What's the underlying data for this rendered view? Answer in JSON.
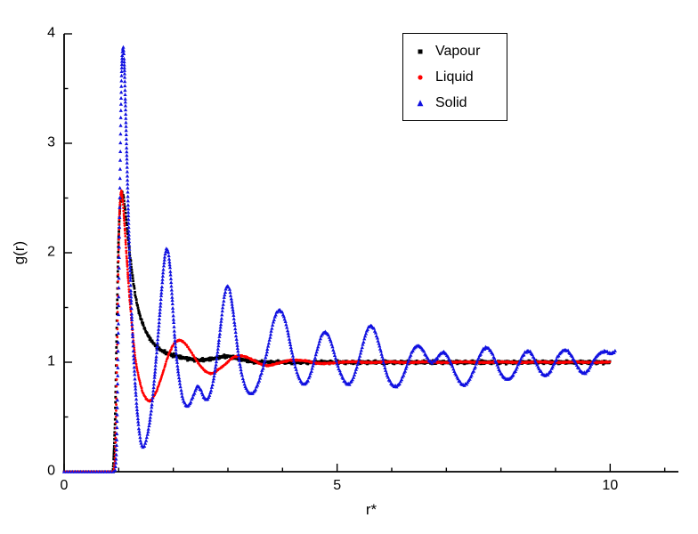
{
  "chart_data": {
    "type": "scatter",
    "title": "",
    "xlabel": "r*",
    "ylabel": "g(r)",
    "xlim": [
      0,
      11.25
    ],
    "ylim": [
      0,
      4
    ],
    "x_major_ticks": [
      0,
      5,
      10
    ],
    "x_minor_step": 1,
    "y_major_ticks": [
      0,
      1,
      2,
      3,
      4
    ],
    "y_minor_step": 0.5,
    "grid": false,
    "legend_position": "top-center-right",
    "axis_color": "#000000",
    "series": [
      {
        "name": "Vapour",
        "marker": "square",
        "color": "#000000",
        "noise": 0.018,
        "points": [
          [
            0.0,
            0
          ],
          [
            0.5,
            0
          ],
          [
            0.88,
            0
          ],
          [
            0.9,
            0.05
          ],
          [
            0.93,
            0.4
          ],
          [
            0.95,
            0.9
          ],
          [
            0.97,
            1.5
          ],
          [
            1.0,
            2.15
          ],
          [
            1.03,
            2.45
          ],
          [
            1.06,
            2.55
          ],
          [
            1.09,
            2.5
          ],
          [
            1.12,
            2.38
          ],
          [
            1.16,
            2.2
          ],
          [
            1.2,
            2.0
          ],
          [
            1.25,
            1.8
          ],
          [
            1.3,
            1.63
          ],
          [
            1.36,
            1.48
          ],
          [
            1.42,
            1.38
          ],
          [
            1.5,
            1.28
          ],
          [
            1.58,
            1.21
          ],
          [
            1.66,
            1.16
          ],
          [
            1.75,
            1.12
          ],
          [
            1.85,
            1.09
          ],
          [
            1.95,
            1.07
          ],
          [
            2.1,
            1.05
          ],
          [
            2.3,
            1.03
          ],
          [
            2.5,
            1.02
          ],
          [
            2.7,
            1.03
          ],
          [
            2.9,
            1.05
          ],
          [
            3.05,
            1.05
          ],
          [
            3.2,
            1.03
          ],
          [
            3.4,
            1.01
          ],
          [
            3.6,
            1.0
          ],
          [
            4.0,
            1.0
          ],
          [
            4.5,
            1.0
          ],
          [
            5.0,
            1.0
          ],
          [
            5.5,
            1.0
          ],
          [
            6.0,
            1.0
          ],
          [
            6.5,
            1.0
          ],
          [
            7.0,
            1.0
          ],
          [
            7.5,
            1.0
          ],
          [
            8.0,
            1.0
          ],
          [
            8.5,
            1.0
          ],
          [
            9.0,
            1.0
          ],
          [
            9.5,
            1.0
          ],
          [
            10.0,
            1.0
          ]
        ]
      },
      {
        "name": "Liquid",
        "marker": "circle",
        "color": "#ff0000",
        "noise": 0.008,
        "points": [
          [
            0.0,
            0
          ],
          [
            0.5,
            0
          ],
          [
            0.9,
            0
          ],
          [
            0.93,
            0.1
          ],
          [
            0.95,
            0.5
          ],
          [
            0.97,
            1.1
          ],
          [
            0.99,
            1.8
          ],
          [
            1.01,
            2.3
          ],
          [
            1.04,
            2.55
          ],
          [
            1.07,
            2.5
          ],
          [
            1.1,
            2.3
          ],
          [
            1.14,
            2.0
          ],
          [
            1.19,
            1.65
          ],
          [
            1.24,
            1.35
          ],
          [
            1.3,
            1.05
          ],
          [
            1.36,
            0.88
          ],
          [
            1.43,
            0.74
          ],
          [
            1.5,
            0.67
          ],
          [
            1.58,
            0.65
          ],
          [
            1.66,
            0.7
          ],
          [
            1.74,
            0.8
          ],
          [
            1.82,
            0.92
          ],
          [
            1.9,
            1.05
          ],
          [
            1.98,
            1.14
          ],
          [
            2.06,
            1.19
          ],
          [
            2.14,
            1.2
          ],
          [
            2.22,
            1.17
          ],
          [
            2.32,
            1.1
          ],
          [
            2.42,
            1.02
          ],
          [
            2.52,
            0.95
          ],
          [
            2.62,
            0.91
          ],
          [
            2.72,
            0.9
          ],
          [
            2.82,
            0.93
          ],
          [
            2.95,
            0.98
          ],
          [
            3.08,
            1.04
          ],
          [
            3.2,
            1.06
          ],
          [
            3.32,
            1.05
          ],
          [
            3.45,
            1.02
          ],
          [
            3.58,
            0.99
          ],
          [
            3.72,
            0.97
          ],
          [
            3.85,
            0.98
          ],
          [
            4.0,
            1.0
          ],
          [
            4.15,
            1.02
          ],
          [
            4.3,
            1.02
          ],
          [
            4.45,
            1.01
          ],
          [
            4.6,
            0.99
          ],
          [
            4.8,
            0.99
          ],
          [
            5.0,
            1.0
          ],
          [
            5.5,
            1.0
          ],
          [
            6.0,
            1.0
          ],
          [
            6.5,
            1.0
          ],
          [
            7.0,
            1.0
          ],
          [
            7.5,
            1.0
          ],
          [
            8.0,
            1.0
          ],
          [
            8.5,
            1.0
          ],
          [
            9.0,
            1.0
          ],
          [
            9.5,
            1.0
          ],
          [
            10.0,
            1.0
          ]
        ]
      },
      {
        "name": "Solid",
        "marker": "triangle",
        "color": "#1010e0",
        "noise": 0.008,
        "points": [
          [
            0.0,
            0
          ],
          [
            0.5,
            0
          ],
          [
            0.93,
            0
          ],
          [
            0.96,
            0.2
          ],
          [
            0.98,
            0.8
          ],
          [
            1.0,
            1.6
          ],
          [
            1.02,
            2.5
          ],
          [
            1.04,
            3.3
          ],
          [
            1.06,
            3.75
          ],
          [
            1.08,
            3.88
          ],
          [
            1.1,
            3.75
          ],
          [
            1.12,
            3.4
          ],
          [
            1.15,
            2.85
          ],
          [
            1.18,
            2.3
          ],
          [
            1.21,
            1.8
          ],
          [
            1.25,
            1.3
          ],
          [
            1.29,
            0.9
          ],
          [
            1.33,
            0.6
          ],
          [
            1.38,
            0.35
          ],
          [
            1.43,
            0.23
          ],
          [
            1.48,
            0.25
          ],
          [
            1.53,
            0.35
          ],
          [
            1.58,
            0.5
          ],
          [
            1.63,
            0.72
          ],
          [
            1.68,
            1.0
          ],
          [
            1.73,
            1.3
          ],
          [
            1.78,
            1.62
          ],
          [
            1.83,
            1.9
          ],
          [
            1.87,
            2.03
          ],
          [
            1.91,
            2.0
          ],
          [
            1.95,
            1.8
          ],
          [
            1.99,
            1.5
          ],
          [
            2.03,
            1.2
          ],
          [
            2.08,
            0.95
          ],
          [
            2.13,
            0.78
          ],
          [
            2.18,
            0.66
          ],
          [
            2.24,
            0.6
          ],
          [
            2.3,
            0.62
          ],
          [
            2.37,
            0.7
          ],
          [
            2.44,
            0.78
          ],
          [
            2.5,
            0.75
          ],
          [
            2.56,
            0.68
          ],
          [
            2.62,
            0.66
          ],
          [
            2.68,
            0.72
          ],
          [
            2.74,
            0.85
          ],
          [
            2.8,
            1.05
          ],
          [
            2.86,
            1.3
          ],
          [
            2.92,
            1.55
          ],
          [
            2.97,
            1.68
          ],
          [
            3.02,
            1.68
          ],
          [
            3.07,
            1.55
          ],
          [
            3.13,
            1.32
          ],
          [
            3.19,
            1.08
          ],
          [
            3.25,
            0.9
          ],
          [
            3.32,
            0.78
          ],
          [
            3.39,
            0.72
          ],
          [
            3.46,
            0.72
          ],
          [
            3.53,
            0.78
          ],
          [
            3.6,
            0.88
          ],
          [
            3.68,
            1.02
          ],
          [
            3.76,
            1.2
          ],
          [
            3.84,
            1.38
          ],
          [
            3.92,
            1.47
          ],
          [
            4.0,
            1.45
          ],
          [
            4.08,
            1.32
          ],
          [
            4.16,
            1.12
          ],
          [
            4.24,
            0.95
          ],
          [
            4.32,
            0.84
          ],
          [
            4.4,
            0.8
          ],
          [
            4.48,
            0.85
          ],
          [
            4.56,
            0.97
          ],
          [
            4.64,
            1.12
          ],
          [
            4.72,
            1.25
          ],
          [
            4.8,
            1.27
          ],
          [
            4.88,
            1.2
          ],
          [
            4.96,
            1.06
          ],
          [
            5.04,
            0.93
          ],
          [
            5.12,
            0.84
          ],
          [
            5.2,
            0.8
          ],
          [
            5.28,
            0.84
          ],
          [
            5.36,
            0.95
          ],
          [
            5.44,
            1.1
          ],
          [
            5.52,
            1.25
          ],
          [
            5.6,
            1.33
          ],
          [
            5.68,
            1.3
          ],
          [
            5.76,
            1.18
          ],
          [
            5.84,
            1.02
          ],
          [
            5.92,
            0.88
          ],
          [
            6.0,
            0.8
          ],
          [
            6.08,
            0.78
          ],
          [
            6.16,
            0.82
          ],
          [
            6.24,
            0.92
          ],
          [
            6.32,
            1.03
          ],
          [
            6.4,
            1.12
          ],
          [
            6.48,
            1.15
          ],
          [
            6.56,
            1.12
          ],
          [
            6.64,
            1.05
          ],
          [
            6.72,
            1.0
          ],
          [
            6.8,
            1.02
          ],
          [
            6.88,
            1.07
          ],
          [
            6.96,
            1.09
          ],
          [
            7.04,
            1.04
          ],
          [
            7.12,
            0.95
          ],
          [
            7.2,
            0.86
          ],
          [
            7.28,
            0.8
          ],
          [
            7.36,
            0.8
          ],
          [
            7.44,
            0.86
          ],
          [
            7.52,
            0.95
          ],
          [
            7.6,
            1.05
          ],
          [
            7.68,
            1.12
          ],
          [
            7.76,
            1.13
          ],
          [
            7.84,
            1.08
          ],
          [
            7.92,
            0.99
          ],
          [
            8.0,
            0.9
          ],
          [
            8.08,
            0.85
          ],
          [
            8.16,
            0.85
          ],
          [
            8.24,
            0.9
          ],
          [
            8.32,
            0.98
          ],
          [
            8.4,
            1.06
          ],
          [
            8.48,
            1.1
          ],
          [
            8.56,
            1.08
          ],
          [
            8.64,
            1.0
          ],
          [
            8.72,
            0.92
          ],
          [
            8.8,
            0.88
          ],
          [
            8.88,
            0.9
          ],
          [
            8.96,
            0.97
          ],
          [
            9.04,
            1.05
          ],
          [
            9.12,
            1.1
          ],
          [
            9.2,
            1.11
          ],
          [
            9.28,
            1.07
          ],
          [
            9.36,
            1.0
          ],
          [
            9.44,
            0.93
          ],
          [
            9.52,
            0.9
          ],
          [
            9.6,
            0.93
          ],
          [
            9.68,
            1.0
          ],
          [
            9.76,
            1.06
          ],
          [
            9.84,
            1.09
          ],
          [
            9.92,
            1.1
          ],
          [
            10.0,
            1.08
          ],
          [
            10.1,
            1.1
          ]
        ]
      }
    ]
  }
}
